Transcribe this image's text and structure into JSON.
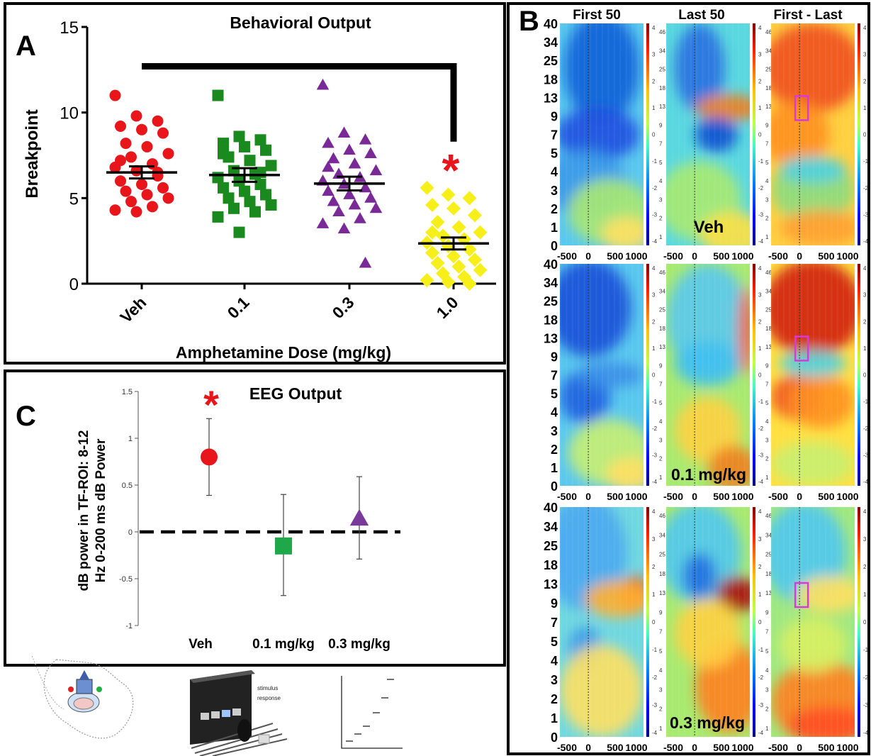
{
  "panel_a": {
    "letter": "A",
    "title": "Behavioral Output",
    "ylabel": "Breakpoint",
    "xlabel": "Amphetamine Dose (mg/kg)",
    "significance": "*"
  },
  "panel_b": {
    "letter": "B",
    "col_titles": [
      "First 50",
      "Last 50",
      "First - Last"
    ],
    "row_labels": [
      "Veh",
      "0.1 mg/kg",
      "0.3 mg/kg"
    ],
    "freq_ticks": [
      "40",
      "34",
      "25",
      "18",
      "13",
      "9",
      "7",
      "5",
      "4",
      "3",
      "2",
      "1",
      "0"
    ],
    "time_ticks": [
      "-500",
      "0",
      "500",
      "1000"
    ],
    "cbar_left_ticks": [
      "4",
      "3",
      "2",
      "1",
      "0",
      "-1",
      "-2",
      "-3",
      "-4"
    ],
    "cbar_mid_ticks": [
      "46",
      "34",
      "25",
      "18",
      "13",
      "9",
      "7",
      "5",
      "4",
      "3",
      "2",
      "1"
    ],
    "roi_box_color": "#d63adf"
  },
  "panel_c": {
    "letter": "C",
    "title": "EEG Output",
    "ylabel_line1": "dB power in TF-ROI: 8-12",
    "ylabel_line2": "Hz 0-200 ms dB Power",
    "significance": "*"
  },
  "illustrations": {
    "stim_text_1": "stimulus",
    "stim_text_2": "response"
  },
  "chart_data": [
    {
      "type": "scatter",
      "title": "Behavioral Output",
      "xlabel": "Amphetamine Dose (mg/kg)",
      "ylabel": "Breakpoint",
      "ylim": [
        0,
        15
      ],
      "yticks": [
        0,
        5,
        10,
        15
      ],
      "categories": [
        "Veh",
        "0.1",
        "0.3",
        "1.0"
      ],
      "colors": [
        "#e8161b",
        "#1a8a1e",
        "#7a2a96",
        "#f6ef1a"
      ],
      "markers": [
        "circle",
        "square",
        "triangle",
        "diamond"
      ],
      "means": [
        6.5,
        6.35,
        5.85,
        2.35
      ],
      "sem": [
        0.35,
        0.4,
        0.4,
        0.35
      ],
      "series": [
        {
          "values": [
            11,
            9.8,
            9.5,
            9.2,
            9,
            8.8,
            8.2,
            8,
            7.6,
            7.4,
            7,
            6.8,
            6.6,
            6.3,
            6,
            5.8,
            5.6,
            5.4,
            5.2,
            5,
            4.8,
            4.5,
            4.3,
            4.2,
            6.5,
            7.2
          ]
        },
        {
          "values": [
            11,
            8.6,
            8.4,
            8.2,
            8,
            7.8,
            7.4,
            7.2,
            6.9,
            6.6,
            6.4,
            6.2,
            6,
            5.8,
            5.6,
            5.4,
            5.2,
            5,
            4.8,
            4.6,
            4.4,
            4.2,
            3.9,
            3,
            6.5,
            7.6
          ]
        },
        {
          "values": [
            11.6,
            8.8,
            8.4,
            8.2,
            7.8,
            7.6,
            7.3,
            7,
            6.6,
            6.4,
            6.2,
            6,
            5.8,
            5.6,
            5.4,
            5.2,
            5,
            4.8,
            4.6,
            4.4,
            4.2,
            3.8,
            3.5,
            3.2,
            1.2,
            6.8
          ]
        },
        {
          "values": [
            5.6,
            5.2,
            5,
            4.6,
            4.4,
            4,
            3.6,
            3.3,
            3,
            2.8,
            2.6,
            2.4,
            2.2,
            2,
            1.8,
            1.6,
            1.4,
            1.2,
            1,
            0.8,
            0.6,
            0.4,
            0.2,
            0.1,
            0,
            3
          ]
        }
      ],
      "bracket": {
        "from": "Veh",
        "to": "1.0",
        "y": 12.7
      }
    },
    {
      "type": "scatter",
      "title": "EEG Output",
      "ylabel": "dB power in TF-ROI: 8-12 Hz 0-200 ms dB Power",
      "ylim": [
        -1,
        1.5
      ],
      "yticks": [
        1.5,
        1,
        0.5,
        0,
        -0.5,
        -1
      ],
      "categories": [
        "Veh",
        "0.1 mg/kg",
        "0.3 mg/kg"
      ],
      "colors": [
        "#e8161b",
        "#1fa84a",
        "#7a3a9a"
      ],
      "markers": [
        "circle",
        "square",
        "triangle"
      ],
      "values": [
        0.8,
        -0.15,
        0.14
      ],
      "error_upper": [
        1.21,
        0.4,
        0.59
      ],
      "error_lower": [
        0.39,
        -0.68,
        -0.29
      ],
      "reference_line": 0
    }
  ]
}
